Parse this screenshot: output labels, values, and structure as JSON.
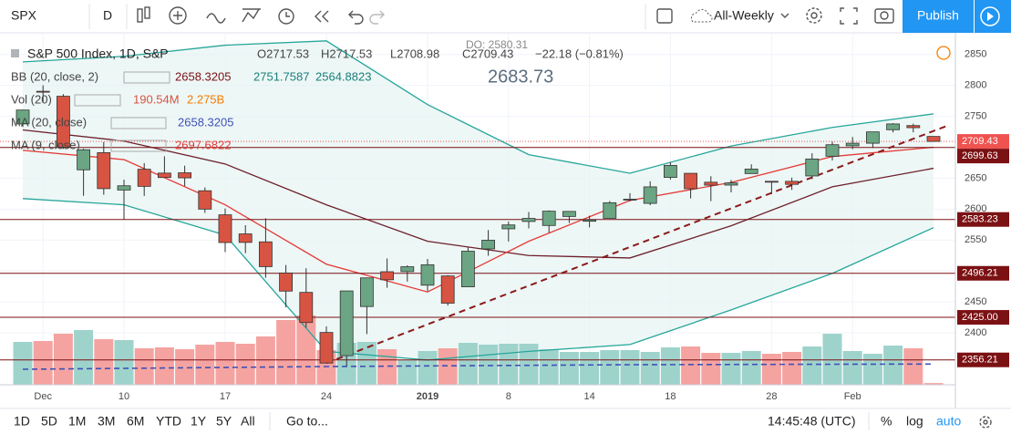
{
  "toolbar": {
    "symbol": "SPX",
    "interval": "D",
    "layout": "All-Weekly",
    "publish": "Publish"
  },
  "legend": {
    "title": "S&P 500 Index, 1D, S&P",
    "open": "O2717.53",
    "high": "H2717.53",
    "low": "L2708.98",
    "close": "C2709.43",
    "change": "−22.18 (−0.81%)",
    "do": "DO: 2580.31",
    "crosshair": "2683.73",
    "bb": {
      "label": "BB (20, close, 2)",
      "basis": "2658.3205",
      "upper": "2751.7587",
      "lower": "2564.8823"
    },
    "vol": {
      "label": "Vol (20)",
      "value": "190.54M",
      "ma": "2.275B"
    },
    "ma20": {
      "label": "MA (20, close)",
      "value": "2658.3205"
    },
    "ma9": {
      "label": "MA (9, close)",
      "value": "2697.6822"
    }
  },
  "bottom": {
    "ranges": [
      "1D",
      "5D",
      "1M",
      "3M",
      "6M",
      "YTD",
      "1Y",
      "5Y",
      "All"
    ],
    "goto": "Go to...",
    "time": "14:45:48 (UTC)",
    "percent": "%",
    "log": "log",
    "auto": "auto"
  },
  "chart_data": {
    "type": "candlestick",
    "open": [
      2737.76,
      2790.5,
      2782.43,
      2663.51,
      2691.26,
      2630.86,
      2664.44,
      2658.23,
      2658.7,
      2629.68,
      2590.75,
      2559.9,
      2547.05,
      2496.77,
      2465.38,
      2400.56,
      2363.12,
      2442.5,
      2498.77,
      2498.94,
      2476.96,
      2491.92,
      2474.33,
      2535.61,
      2568.11,
      2580,
      2573.51,
      2588.11,
      2580.31,
      2585.1,
      2614.75,
      2609.28,
      2651.27,
      2657.88,
      2643.48,
      2638.84,
      2657.44,
      2644.97,
      2644.89,
      2653.62,
      2685.49,
      2702.32,
      2706.49,
      2728.34,
      2735.05,
      2717.53
    ],
    "high": [
      2760.88,
      2800.18,
      2785.93,
      2697.86,
      2708.54,
      2647.51,
      2674.35,
      2685.44,
      2670.19,
      2635.07,
      2601.13,
      2573.99,
      2585.29,
      2509.63,
      2504.41,
      2410.34,
      2467.76,
      2489.1,
      2520.27,
      2509.24,
      2519.49,
      2493.14,
      2538.07,
      2566.16,
      2579.82,
      2595.32,
      2597.82,
      2596.27,
      2589.32,
      2613.08,
      2625.76,
      2645.06,
      2675.47,
      2657.88,
      2653.19,
      2647.2,
      2672.38,
      2644.97,
      2650.93,
      2690.44,
      2708.95,
      2716.66,
      2724.99,
      2738.98,
      2738.08,
      2717.53
    ],
    "low": [
      2732.76,
      2773.38,
      2697.18,
      2621.53,
      2623.14,
      2583.23,
      2621.3,
      2650.26,
      2637.27,
      2593.84,
      2530.54,
      2528.71,
      2488.96,
      2441.18,
      2408.55,
      2351.1,
      2346.58,
      2397.94,
      2472.89,
      2482.82,
      2467.47,
      2443.96,
      2474.33,
      2524.56,
      2547.56,
      2568.89,
      2562.02,
      2577.4,
      2570.41,
      2585.1,
      2612.68,
      2606.36,
      2647.58,
      2617.27,
      2612.86,
      2627.01,
      2657.33,
      2624.06,
      2631.05,
      2648.34,
      2678.65,
      2696.88,
      2698.75,
      2724.03,
      2724.15,
      2708.98
    ],
    "close": [
      2760.17,
      2790.37,
      2700.06,
      2695.95,
      2633.08,
      2637.72,
      2636.78,
      2651.07,
      2650.54,
      2599.95,
      2545.94,
      2546.16,
      2506.96,
      2467.42,
      2416.62,
      2351.1,
      2467.7,
      2488.83,
      2485.74,
      2506.85,
      2510.03,
      2447.89,
      2531.94,
      2549.69,
      2574.41,
      2584.96,
      2596.64,
      2596.26,
      2582.61,
      2610.3,
      2616.1,
      2635.96,
      2670.71,
      2632.9,
      2638.7,
      2642.33,
      2664.76,
      2643.85,
      2640,
      2681.05,
      2704.1,
      2706.53,
      2724.87,
      2737.7,
      2731.61,
      2709.43
    ],
    "volume": [
      4700000000,
      4800000000,
      5600000000,
      6000000000,
      5000000000,
      4900000000,
      4000000000,
      4100000000,
      3900000000,
      4400000000,
      4700000000,
      4500000000,
      5300000000,
      7100000000,
      7600000000,
      3800000000,
      4600000000,
      4700000000,
      3900000000,
      2700000000,
      3700000000,
      4000000000,
      4600000000,
      4400000000,
      4500000000,
      4500000000,
      3900000000,
      3600000000,
      3600000000,
      3800000000,
      3800000000,
      3600000000,
      4100000000,
      4200000000,
      3500000000,
      3500000000,
      3700000000,
      3400000000,
      3600000000,
      4200000000,
      5600000000,
      3700000000,
      3400000000,
      4300000000,
      4000000000,
      190540000
    ],
    "up_color": "#6ba583",
    "down_color": "#d75442",
    "volume_up_color": "#9ed3cc",
    "volume_down_color": "#f5a3a1",
    "ylim": [
      2316,
      2885
    ],
    "yticks": [
      2400,
      2450,
      2500,
      2550,
      2600,
      2650,
      2700,
      2750,
      2800,
      2850
    ],
    "y2lim": [
      0,
      10000000000
    ],
    "xticks": [
      {
        "value": 1,
        "label": "Dec"
      },
      {
        "value": 5,
        "label": "10"
      },
      {
        "value": 10,
        "label": "17"
      },
      {
        "value": 15,
        "label": "24"
      },
      {
        "value": 20,
        "label": "2019"
      },
      {
        "value": 24,
        "label": "8"
      },
      {
        "value": 28,
        "label": "14"
      },
      {
        "value": 32,
        "label": "18"
      },
      {
        "value": 37,
        "label": "28"
      },
      {
        "value": 41,
        "label": "Feb"
      }
    ],
    "grid": true,
    "band": {
      "color": "#26a69a",
      "fill": "#e6f4f2",
      "upper": {
        "x": [
          0,
          5,
          10,
          15,
          20,
          25,
          30,
          35,
          40,
          45
        ],
        "values": [
          2838,
          2847,
          2865,
          2872,
          2769,
          2688,
          2658,
          2702,
          2732,
          2754
        ]
      },
      "lower": {
        "x": [
          0,
          5,
          10,
          15,
          20,
          25,
          30,
          35,
          40,
          45
        ],
        "values": [
          2617,
          2607,
          2558,
          2370,
          2356,
          2370,
          2381,
          2437,
          2496,
          2570
        ]
      }
    },
    "lines": [
      {
        "color": "#6d1f2a",
        "x": [
          0,
          5,
          10,
          15,
          20,
          25,
          30,
          35,
          40,
          45
        ],
        "values": [
          2728,
          2710,
          2673,
          2607,
          2548,
          2525,
          2521,
          2573,
          2636,
          2666
        ]
      },
      {
        "color": "#e53935",
        "x": [
          0,
          5,
          10,
          15,
          20,
          25,
          30,
          35,
          40,
          45
        ],
        "values": [
          2695,
          2680,
          2607,
          2511,
          2466,
          2548,
          2614,
          2643,
          2685,
          2700
        ]
      }
    ],
    "volume_ma": {
      "color": "#3f51b5",
      "x": [
        0,
        15,
        30,
        45
      ],
      "values": [
        1700000000,
        2000000000,
        2200000000,
        2275000000
      ]
    },
    "levels": [
      {
        "value": 2699.63,
        "label": "2699.63"
      },
      {
        "value": 2583.23,
        "label": "2583.23"
      },
      {
        "value": 2496.21,
        "label": "2496.21"
      },
      {
        "value": 2425,
        "label": "2425.00"
      },
      {
        "value": 2356.21,
        "label": "2356.21"
      }
    ],
    "level_color": "#7b1113",
    "last_price": {
      "value": 2709.43,
      "label": "2709.43"
    },
    "last_price_color": "#ef5350",
    "trendline": {
      "x": [
        15,
        45.7
      ],
      "values": [
        2351.1,
        2735
      ],
      "color": "#8b1a1a"
    }
  }
}
